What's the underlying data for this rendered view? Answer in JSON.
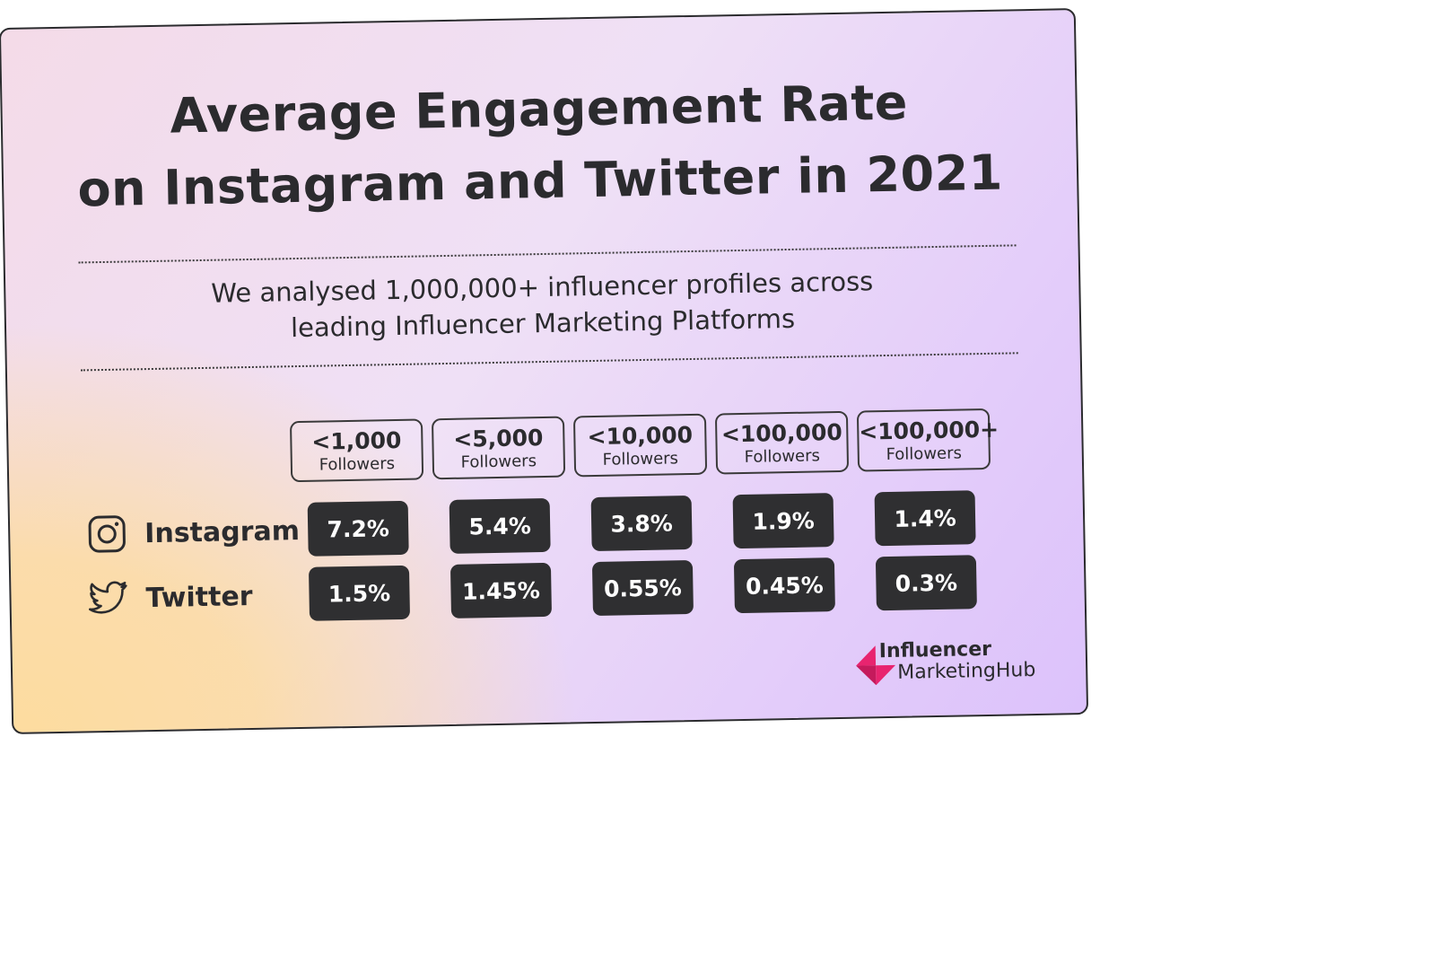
{
  "title": {
    "line1": "Average Engagement Rate",
    "line2": "on Instagram and Twitter in 2021"
  },
  "subtitle": {
    "line1": "We analysed 1,000,000+ influencer profiles across",
    "line2": "leading Influencer Marketing Platforms"
  },
  "logo": {
    "line1": "Influencer",
    "line2": "MarketingHub",
    "colors": [
      "#e8246f",
      "#b5195a"
    ]
  },
  "icons": {
    "instagram": "instagram-icon",
    "twitter": "twitter-bird-icon"
  },
  "colors": {
    "cell_bg": "#2f2f31",
    "cell_text": "#ffffff",
    "gradient": [
      "#fddc9f",
      "#efe0f6",
      "#dcc2fb"
    ]
  },
  "chart_data": {
    "type": "table",
    "columns": [
      {
        "label": "<1,000",
        "sub": "Followers"
      },
      {
        "label": "<5,000",
        "sub": "Followers"
      },
      {
        "label": "<10,000",
        "sub": "Followers"
      },
      {
        "label": "<100,000",
        "sub": "Followers"
      },
      {
        "label": "<100,000+",
        "sub": "Followers"
      }
    ],
    "rows": [
      {
        "name": "Instagram",
        "values": [
          "7.2%",
          "5.4%",
          "3.8%",
          "1.9%",
          "1.4%"
        ]
      },
      {
        "name": "Twitter",
        "values": [
          "1.5%",
          "1.45%",
          "0.55%",
          "0.45%",
          "0.3%"
        ]
      }
    ]
  }
}
